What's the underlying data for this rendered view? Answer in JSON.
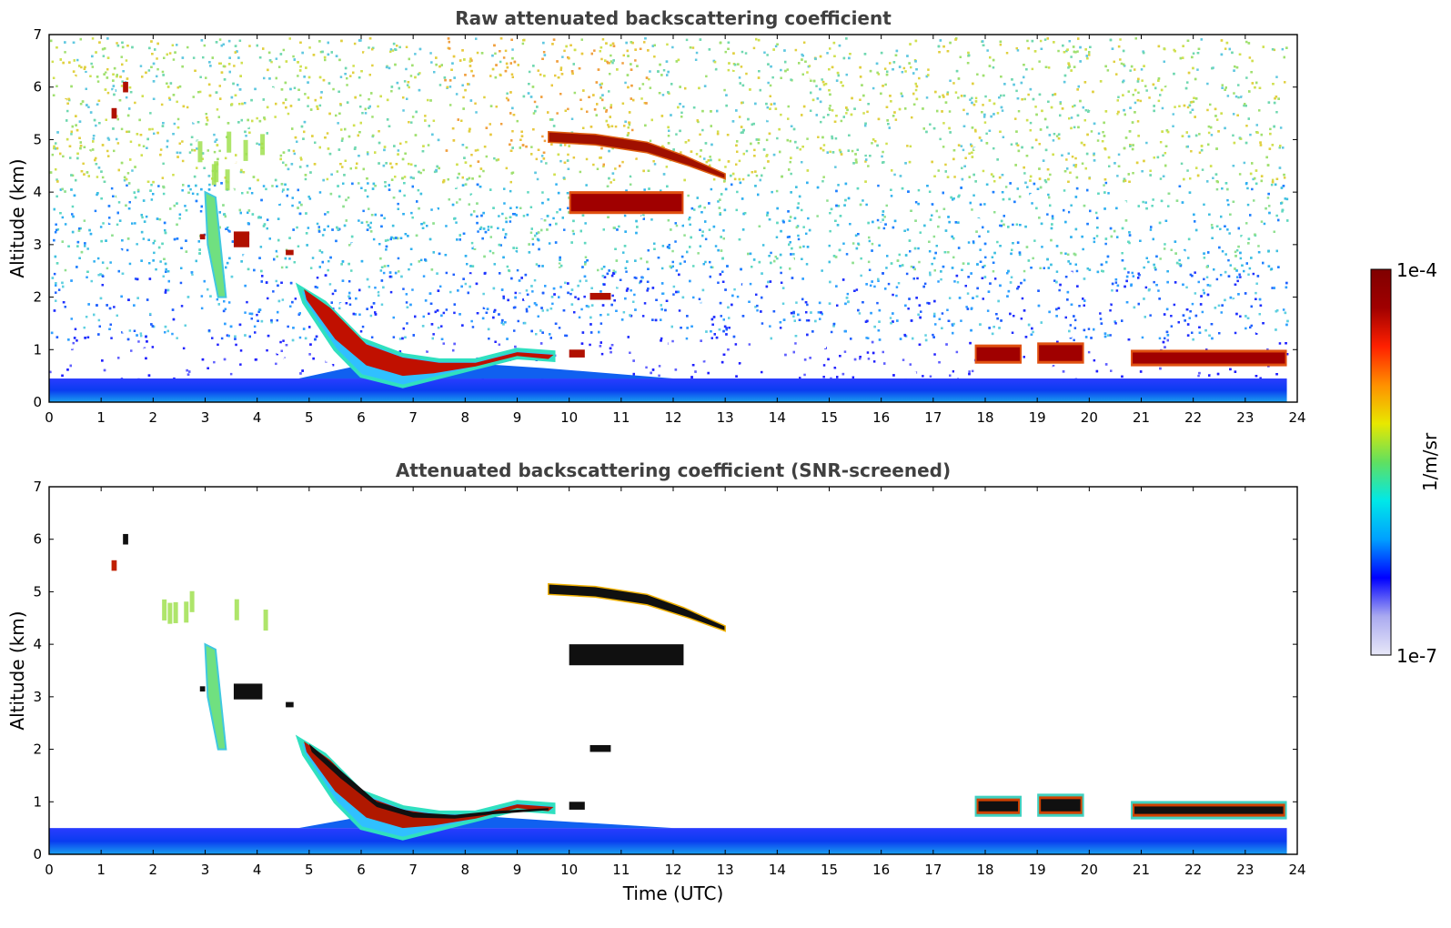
{
  "chart_data": [
    {
      "type": "heatmap",
      "title": "Raw attenuated backscattering coefficient",
      "xlabel": "",
      "ylabel": "Altitude (km)",
      "xlim": [
        0,
        24
      ],
      "ylim": [
        0,
        7
      ],
      "xticks": [
        "0",
        "1",
        "2",
        "3",
        "4",
        "5",
        "6",
        "7",
        "8",
        "9",
        "10",
        "11",
        "12",
        "13",
        "14",
        "15",
        "16",
        "17",
        "18",
        "19",
        "20",
        "21",
        "22",
        "23",
        "24"
      ],
      "yticks": [
        "0",
        "1",
        "2",
        "3",
        "4",
        "5",
        "6",
        "7"
      ],
      "colorscale": "jet",
      "data_end_time": 23.8,
      "background_noise": "dense speckle: white/blue near 0.5-2 km, cyan/green 2-6 km, yellow/orange near top around 8-11 UTC",
      "surface_layer": {
        "top_km": 0.45,
        "color_range": "blue-cyan"
      },
      "features": [
        {
          "t0": 1.42,
          "t1": 1.52,
          "z0": 5.9,
          "z1": 6.1,
          "level": "high"
        },
        {
          "t0": 1.2,
          "t1": 1.3,
          "z0": 5.4,
          "z1": 5.6,
          "level": "high"
        },
        {
          "t0": 2.8,
          "t1": 4.4,
          "z0": 4.0,
          "z1": 5.3,
          "level": "mid",
          "note": "faint green virga streaks"
        },
        {
          "t0": 3.0,
          "t1": 3.4,
          "z0": 2.0,
          "z1": 4.0,
          "level": "mid",
          "note": "green slanted streak"
        },
        {
          "t0": 2.9,
          "t1": 3.0,
          "z0": 3.1,
          "z1": 3.2,
          "level": "high"
        },
        {
          "t0": 3.55,
          "t1": 3.85,
          "z0": 2.95,
          "z1": 3.25,
          "level": "high"
        },
        {
          "t0": 4.55,
          "t1": 4.7,
          "z0": 2.8,
          "z1": 2.9,
          "level": "high"
        },
        {
          "t0": 4.8,
          "t1": 9.7,
          "z0": 0.3,
          "z1": 2.2,
          "level": "high",
          "note": "descending boundary-layer cloud"
        },
        {
          "t0": 9.6,
          "t1": 13.0,
          "z0": 4.3,
          "z1": 5.15,
          "level": "high",
          "note": "sloping mid-level cloud"
        },
        {
          "t0": 10.0,
          "t1": 12.2,
          "z0": 3.6,
          "z1": 4.0,
          "level": "high"
        },
        {
          "t0": 10.4,
          "t1": 10.8,
          "z0": 1.95,
          "z1": 2.08,
          "level": "high"
        },
        {
          "t0": 10.0,
          "t1": 10.3,
          "z0": 0.85,
          "z1": 1.0,
          "level": "high"
        },
        {
          "t0": 17.8,
          "t1": 18.7,
          "z0": 0.75,
          "z1": 1.08,
          "level": "high"
        },
        {
          "t0": 19.0,
          "t1": 19.9,
          "z0": 0.75,
          "z1": 1.12,
          "level": "high"
        },
        {
          "t0": 20.8,
          "t1": 23.8,
          "z0": 0.7,
          "z1": 0.98,
          "level": "high"
        }
      ]
    },
    {
      "type": "heatmap",
      "title": "Attenuated backscattering coefficient (SNR-screened)",
      "xlabel": "Time (UTC)",
      "ylabel": "Altitude (km)",
      "xlim": [
        0,
        24
      ],
      "ylim": [
        0,
        7
      ],
      "xticks": [
        "0",
        "1",
        "2",
        "3",
        "4",
        "5",
        "6",
        "7",
        "8",
        "9",
        "10",
        "11",
        "12",
        "13",
        "14",
        "15",
        "16",
        "17",
        "18",
        "19",
        "20",
        "21",
        "22",
        "23",
        "24"
      ],
      "yticks": [
        "0",
        "1",
        "2",
        "3",
        "4",
        "5",
        "6",
        "7"
      ],
      "colorscale": "jet",
      "data_end_time": 23.8,
      "background_noise": "removed (white)",
      "surface_layer": {
        "top_km": 0.5,
        "color_range": "blue-cyan"
      },
      "features": [
        {
          "t0": 1.42,
          "t1": 1.52,
          "z0": 5.9,
          "z1": 6.1,
          "level": "black"
        },
        {
          "t0": 1.2,
          "t1": 1.3,
          "z0": 5.4,
          "z1": 5.6,
          "level": "high"
        },
        {
          "t0": 1.5,
          "t1": 4.4,
          "z0": 4.2,
          "z1": 5.3,
          "level": "mid",
          "note": "sparse green streaks"
        },
        {
          "t0": 3.0,
          "t1": 3.4,
          "z0": 2.0,
          "z1": 4.0,
          "level": "mid",
          "note": "green slanted streak"
        },
        {
          "t0": 2.9,
          "t1": 3.0,
          "z0": 3.1,
          "z1": 3.2,
          "level": "black"
        },
        {
          "t0": 3.55,
          "t1": 4.1,
          "z0": 2.95,
          "z1": 3.25,
          "level": "black"
        },
        {
          "t0": 4.55,
          "t1": 4.7,
          "z0": 2.8,
          "z1": 2.9,
          "level": "black"
        },
        {
          "t0": 4.8,
          "t1": 9.7,
          "z0": 0.3,
          "z1": 2.2,
          "level": "black-core",
          "note": "descending boundary-layer cloud"
        },
        {
          "t0": 9.6,
          "t1": 13.0,
          "z0": 4.3,
          "z1": 5.15,
          "level": "black-core",
          "note": "sloping mid-level cloud"
        },
        {
          "t0": 10.0,
          "t1": 12.2,
          "z0": 3.6,
          "z1": 4.0,
          "level": "black"
        },
        {
          "t0": 10.4,
          "t1": 10.8,
          "z0": 1.95,
          "z1": 2.08,
          "level": "black"
        },
        {
          "t0": 10.0,
          "t1": 10.3,
          "z0": 0.85,
          "z1": 1.0,
          "level": "black"
        },
        {
          "t0": 17.8,
          "t1": 18.7,
          "z0": 0.75,
          "z1": 1.08,
          "level": "black-core"
        },
        {
          "t0": 19.0,
          "t1": 19.9,
          "z0": 0.75,
          "z1": 1.12,
          "level": "black-core"
        },
        {
          "t0": 20.8,
          "t1": 23.8,
          "z0": 0.7,
          "z1": 0.98,
          "level": "black-core"
        }
      ]
    }
  ],
  "colorbar": {
    "label": "1/m/sr",
    "max_label": "1e-4",
    "min_label": "1e-7",
    "scale": "log",
    "colors": [
      "#e8e8f8",
      "#aaaaf0",
      "#0000ff",
      "#00a0ff",
      "#00e8e8",
      "#60e060",
      "#e8e800",
      "#ff9000",
      "#ff2000",
      "#a00000",
      "#800000"
    ]
  }
}
